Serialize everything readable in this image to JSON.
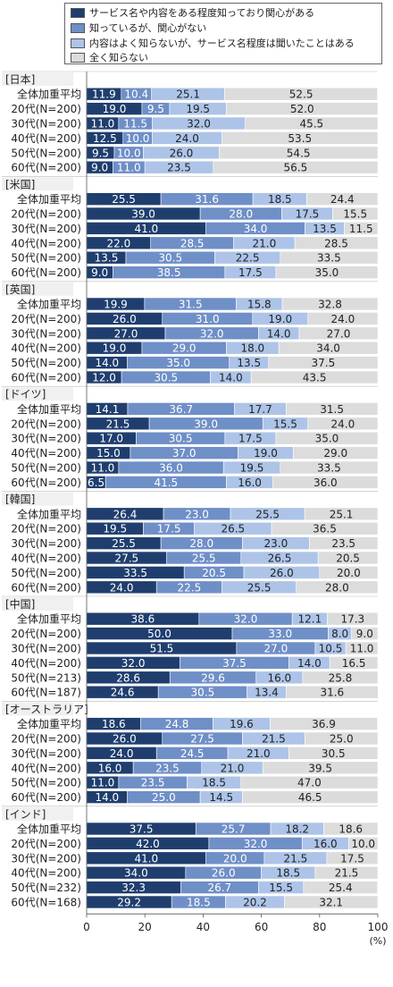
{
  "legend": {
    "items": [
      {
        "label": "サービス名や内容をある程度知っており関心がある",
        "color": "#1f3e6e"
      },
      {
        "label": "知っているが、関心がない",
        "color": "#6f8fc7"
      },
      {
        "label": "内容はよく知らないが、サービス名程度は聞いたことはある",
        "color": "#adc4e8"
      },
      {
        "label": "全く知らない",
        "color": "#dcdcdc"
      }
    ]
  },
  "chart_data": {
    "type": "bar",
    "orientation": "horizontal",
    "stacked": true,
    "xlim": [
      0,
      100
    ],
    "xticks": [
      "0",
      "20",
      "40",
      "60",
      "80",
      "100"
    ],
    "xunit": "(%)",
    "series_names": [
      "サービス名や内容をある程度知っており関心がある",
      "知っているが、関心がない",
      "内容はよく知らないが、サービス名程度は聞いたことはある",
      "全く知らない"
    ],
    "colors": [
      "#1f3e6e",
      "#6f8fc7",
      "#adc4e8",
      "#dcdcdc"
    ],
    "groups": [
      {
        "name": "[日本]",
        "rows": [
          {
            "label": "全体加重平均",
            "values": [
              11.9,
              10.4,
              25.1,
              52.5
            ],
            "labels": [
              "11.9",
              "10.4",
              "25.1",
              "52.5"
            ]
          },
          {
            "label": "20代(N=200)",
            "values": [
              19.0,
              9.5,
              19.5,
              52.0
            ],
            "labels": [
              "19.0",
              "9.5",
              "19.5",
              "52.0"
            ]
          },
          {
            "label": "30代(N=200)",
            "values": [
              11.0,
              11.5,
              32.0,
              45.5
            ],
            "labels": [
              "11.0",
              "11.5",
              "32.0",
              "45.5"
            ]
          },
          {
            "label": "40代(N=200)",
            "values": [
              12.5,
              10.0,
              24.0,
              53.5
            ],
            "labels": [
              "12.5",
              "10.0",
              "24.0",
              "53.5"
            ]
          },
          {
            "label": "50代(N=200)",
            "values": [
              9.5,
              10.0,
              26.0,
              54.5
            ],
            "labels": [
              "9.5",
              "10.0",
              "26.0",
              "54.5"
            ]
          },
          {
            "label": "60代(N=200)",
            "values": [
              9.0,
              11.0,
              23.5,
              56.5
            ],
            "labels": [
              "9.0",
              "11.0",
              "23.5",
              "56.5"
            ]
          }
        ]
      },
      {
        "name": "[米国]",
        "rows": [
          {
            "label": "全体加重平均",
            "values": [
              25.5,
              31.6,
              18.5,
              24.4
            ],
            "labels": [
              "25.5",
              "31.6",
              "18.5",
              "24.4"
            ]
          },
          {
            "label": "20代(N=200)",
            "values": [
              39.0,
              28.0,
              17.5,
              15.5
            ],
            "labels": [
              "39.0",
              "28.0",
              "17.5",
              "15.5"
            ]
          },
          {
            "label": "30代(N=200)",
            "values": [
              41.0,
              34.0,
              13.5,
              11.5
            ],
            "labels": [
              "41.0",
              "34.0",
              "13.5",
              "11.5"
            ]
          },
          {
            "label": "40代(N=200)",
            "values": [
              22.0,
              28.5,
              21.0,
              28.5
            ],
            "labels": [
              "22.0",
              "28.5",
              "21.0",
              "28.5"
            ]
          },
          {
            "label": "50代(N=200)",
            "values": [
              13.5,
              30.5,
              22.5,
              33.5
            ],
            "labels": [
              "13.5",
              "30.5",
              "22.5",
              "33.5"
            ]
          },
          {
            "label": "60代(N=200)",
            "values": [
              9.0,
              38.5,
              17.5,
              35.0
            ],
            "labels": [
              "9.0",
              "38.5",
              "17.5",
              "35.0"
            ]
          }
        ]
      },
      {
        "name": "[英国]",
        "rows": [
          {
            "label": "全体加重平均",
            "values": [
              19.9,
              31.5,
              15.8,
              32.8
            ],
            "labels": [
              "19.9",
              "31.5",
              "15.8",
              "32.8"
            ]
          },
          {
            "label": "20代(N=200)",
            "values": [
              26.0,
              31.0,
              19.0,
              24.0
            ],
            "labels": [
              "26.0",
              "31.0",
              "19.0",
              "24.0"
            ]
          },
          {
            "label": "30代(N=200)",
            "values": [
              27.0,
              32.0,
              14.0,
              27.0
            ],
            "labels": [
              "27.0",
              "32.0",
              "14.0",
              "27.0"
            ]
          },
          {
            "label": "40代(N=200)",
            "values": [
              19.0,
              29.0,
              18.0,
              34.0
            ],
            "labels": [
              "19.0",
              "29.0",
              "18.0",
              "34.0"
            ]
          },
          {
            "label": "50代(N=200)",
            "values": [
              14.0,
              35.0,
              13.5,
              37.5
            ],
            "labels": [
              "14.0",
              "35.0",
              "13.5",
              "37.5"
            ]
          },
          {
            "label": "60代(N=200)",
            "values": [
              12.0,
              30.5,
              14.0,
              43.5
            ],
            "labels": [
              "12.0",
              "30.5",
              "14.0",
              "43.5"
            ]
          }
        ]
      },
      {
        "name": "[ドイツ]",
        "rows": [
          {
            "label": "全体加重平均",
            "values": [
              14.1,
              36.7,
              17.7,
              31.5
            ],
            "labels": [
              "14.1",
              "36.7",
              "17.7",
              "31.5"
            ]
          },
          {
            "label": "20代(N=200)",
            "values": [
              21.5,
              39.0,
              15.5,
              24.0
            ],
            "labels": [
              "21.5",
              "39.0",
              "15.5",
              "24.0"
            ]
          },
          {
            "label": "30代(N=200)",
            "values": [
              17.0,
              30.5,
              17.5,
              35.0
            ],
            "labels": [
              "17.0",
              "30.5",
              "17.5",
              "35.0"
            ]
          },
          {
            "label": "40代(N=200)",
            "values": [
              15.0,
              37.0,
              19.0,
              29.0
            ],
            "labels": [
              "15.0",
              "37.0",
              "19.0",
              "29.0"
            ]
          },
          {
            "label": "50代(N=200)",
            "values": [
              11.0,
              36.0,
              19.5,
              33.5
            ],
            "labels": [
              "11.0",
              "36.0",
              "19.5",
              "33.5"
            ]
          },
          {
            "label": "60代(N=200)",
            "values": [
              6.5,
              41.5,
              16.0,
              36.0
            ],
            "labels": [
              "6.5",
              "41.5",
              "16.0",
              "36.0"
            ]
          }
        ]
      },
      {
        "name": "[韓国]",
        "rows": [
          {
            "label": "全体加重平均",
            "values": [
              26.4,
              23.0,
              25.5,
              25.1
            ],
            "labels": [
              "26.4",
              "23.0",
              "25.5",
              "25.1"
            ]
          },
          {
            "label": "20代(N=200)",
            "values": [
              19.5,
              17.5,
              26.5,
              36.5
            ],
            "labels": [
              "19.5",
              "17.5",
              "26.5",
              "36.5"
            ]
          },
          {
            "label": "30代(N=200)",
            "values": [
              25.5,
              28.0,
              23.0,
              23.5
            ],
            "labels": [
              "25.5",
              "28.0",
              "23.0",
              "23.5"
            ]
          },
          {
            "label": "40代(N=200)",
            "values": [
              27.5,
              25.5,
              26.5,
              20.5
            ],
            "labels": [
              "27.5",
              "25.5",
              "26.5",
              "20.5"
            ]
          },
          {
            "label": "50代(N=200)",
            "values": [
              33.5,
              20.5,
              26.0,
              20.0
            ],
            "labels": [
              "33.5",
              "20.5",
              "26.0",
              "20.0"
            ]
          },
          {
            "label": "60代(N=200)",
            "values": [
              24.0,
              22.5,
              25.5,
              28.0
            ],
            "labels": [
              "24.0",
              "22.5",
              "25.5",
              "28.0"
            ]
          }
        ]
      },
      {
        "name": "[中国]",
        "rows": [
          {
            "label": "全体加重平均",
            "values": [
              38.6,
              32.0,
              12.1,
              17.3
            ],
            "labels": [
              "38.6",
              "32.0",
              "12.1",
              "17.3"
            ]
          },
          {
            "label": "20代(N=200)",
            "values": [
              50.0,
              33.0,
              8.0,
              9.0
            ],
            "labels": [
              "50.0",
              "33.0",
              "8.0",
              "9.0"
            ]
          },
          {
            "label": "30代(N=200)",
            "values": [
              51.5,
              27.0,
              10.5,
              11.0
            ],
            "labels": [
              "51.5",
              "27.0",
              "10.5",
              "11.0"
            ]
          },
          {
            "label": "40代(N=200)",
            "values": [
              32.0,
              37.5,
              14.0,
              16.5
            ],
            "labels": [
              "32.0",
              "37.5",
              "14.0",
              "16.5"
            ]
          },
          {
            "label": "50代(N=213)",
            "values": [
              28.6,
              29.6,
              16.0,
              25.8
            ],
            "labels": [
              "28.6",
              "29.6",
              "16.0",
              "25.8"
            ]
          },
          {
            "label": "60代(N=187)",
            "values": [
              24.6,
              30.5,
              13.4,
              31.6
            ],
            "labels": [
              "24.6",
              "30.5",
              "13.4",
              "31.6"
            ]
          }
        ]
      },
      {
        "name": "[オーストラリア]",
        "rows": [
          {
            "label": "全体加重平均",
            "values": [
              18.6,
              24.8,
              19.6,
              36.9
            ],
            "labels": [
              "18.6",
              "24.8",
              "19.6",
              "36.9"
            ]
          },
          {
            "label": "20代(N=200)",
            "values": [
              26.0,
              27.5,
              21.5,
              25.0
            ],
            "labels": [
              "26.0",
              "27.5",
              "21.5",
              "25.0"
            ]
          },
          {
            "label": "30代(N=200)",
            "values": [
              24.0,
              24.5,
              21.0,
              30.5
            ],
            "labels": [
              "24.0",
              "24.5",
              "21.0",
              "30.5"
            ]
          },
          {
            "label": "40代(N=200)",
            "values": [
              16.0,
              23.5,
              21.0,
              39.5
            ],
            "labels": [
              "16.0",
              "23.5",
              "21.0",
              "39.5"
            ]
          },
          {
            "label": "50代(N=200)",
            "values": [
              11.0,
              23.5,
              18.5,
              47.0
            ],
            "labels": [
              "11.0",
              "23.5",
              "18.5",
              "47.0"
            ]
          },
          {
            "label": "60代(N=200)",
            "values": [
              14.0,
              25.0,
              14.5,
              46.5
            ],
            "labels": [
              "14.0",
              "25.0",
              "14.5",
              "46.5"
            ]
          }
        ]
      },
      {
        "name": "[インド]",
        "rows": [
          {
            "label": "全体加重平均",
            "values": [
              37.5,
              25.7,
              18.2,
              18.6
            ],
            "labels": [
              "37.5",
              "25.7",
              "18.2",
              "18.6"
            ]
          },
          {
            "label": "20代(N=200)",
            "values": [
              42.0,
              32.0,
              16.0,
              10.0
            ],
            "labels": [
              "42.0",
              "32.0",
              "16.0",
              "10.0"
            ]
          },
          {
            "label": "30代(N=200)",
            "values": [
              41.0,
              20.0,
              21.5,
              17.5
            ],
            "labels": [
              "41.0",
              "20.0",
              "21.5",
              "17.5"
            ]
          },
          {
            "label": "40代(N=200)",
            "values": [
              34.0,
              26.0,
              18.5,
              21.5
            ],
            "labels": [
              "34.0",
              "26.0",
              "18.5",
              "21.5"
            ]
          },
          {
            "label": "50代(N=232)",
            "values": [
              32.3,
              26.7,
              15.5,
              25.4
            ],
            "labels": [
              "32.3",
              "26.7",
              "15.5",
              "25.4"
            ]
          },
          {
            "label": "60代(N=168)",
            "values": [
              29.2,
              18.5,
              20.2,
              32.1
            ],
            "labels": [
              "29.2",
              "18.5",
              "20.2",
              "32.1"
            ]
          }
        ]
      }
    ]
  }
}
